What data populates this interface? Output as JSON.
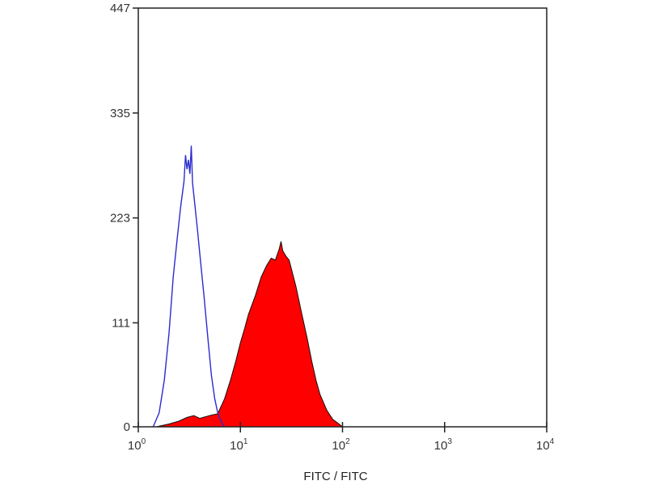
{
  "chart_data": {
    "type": "area",
    "title": "",
    "xlabel": "FITC / FITC",
    "ylabel": "",
    "xscale": "log",
    "xlim": [
      1,
      10000
    ],
    "ylim": [
      0,
      447
    ],
    "grid": false,
    "x_ticks": [
      {
        "base": "10",
        "exp": "0",
        "value": 1
      },
      {
        "base": "10",
        "exp": "1",
        "value": 10
      },
      {
        "base": "10",
        "exp": "2",
        "value": 100
      },
      {
        "base": "10",
        "exp": "3",
        "value": 1000
      },
      {
        "base": "10",
        "exp": "4",
        "value": 10000
      }
    ],
    "y_ticks": [
      "0",
      "111",
      "223",
      "335",
      "447"
    ],
    "series": [
      {
        "style": "outline",
        "color": "#2b2bd0",
        "x": [
          1.4,
          1.6,
          1.8,
          2.0,
          2.2,
          2.4,
          2.6,
          2.8,
          2.9,
          3.0,
          3.1,
          3.2,
          3.3,
          3.4,
          3.6,
          3.8,
          4.0,
          4.4,
          4.8,
          5.2,
          5.6,
          6.0,
          6.5,
          7.0
        ],
        "y": [
          0,
          15,
          50,
          100,
          160,
          200,
          235,
          262,
          290,
          275,
          285,
          270,
          300,
          260,
          235,
          210,
          185,
          140,
          95,
          55,
          30,
          15,
          5,
          0
        ]
      },
      {
        "style": "filled",
        "color": "#ff0000",
        "x": [
          1.5,
          2,
          2.5,
          3,
          3.5,
          4,
          5,
          6,
          7,
          8,
          9,
          10,
          11,
          12,
          14,
          16,
          18,
          20,
          22,
          24,
          25,
          26,
          28,
          30,
          35,
          40,
          45,
          50,
          55,
          60,
          70,
          80,
          90,
          100
        ],
        "y": [
          0,
          3,
          6,
          10,
          12,
          9,
          12,
          14,
          30,
          50,
          70,
          90,
          105,
          120,
          140,
          160,
          172,
          180,
          178,
          190,
          198,
          188,
          182,
          178,
          150,
          120,
          95,
          70,
          50,
          35,
          18,
          8,
          4,
          0
        ]
      }
    ]
  }
}
